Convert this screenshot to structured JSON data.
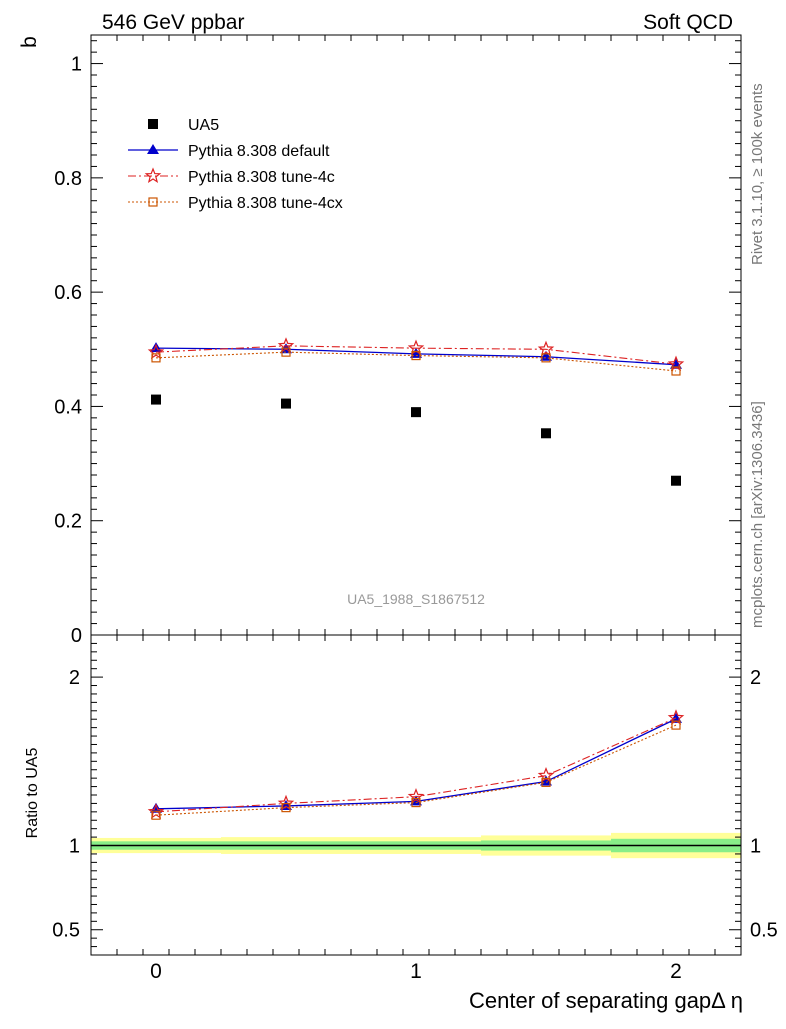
{
  "header": {
    "left": "546 GeV ppbar",
    "right": "Soft QCD"
  },
  "side_labels": {
    "rivet": "Rivet 3.1.10, ≥ 100k events",
    "mcplots": "mcplots.cern.ch [arXiv:1306.3436]"
  },
  "watermark": "UA5_1988_S1867512",
  "colors": {
    "ua5": "#000000",
    "default": "#0000cc",
    "tune4c": "#dd2222",
    "tune4cx": "#cc5500",
    "band_outer": "#ffff99",
    "band_inner": "#88ee88"
  },
  "chart_data": [
    {
      "type": "scatter",
      "ylabel": "b",
      "xlim": [
        -0.25,
        2.25
      ],
      "ylim": [
        0,
        1.05
      ],
      "yticks": [
        0,
        0.2,
        0.4,
        0.6,
        0.8,
        1
      ],
      "ytick_labels": [
        "0",
        "0.2",
        "0.4",
        "0.6",
        "0.8",
        "1"
      ],
      "x": [
        0,
        0.5,
        1,
        1.5,
        2
      ],
      "series": [
        {
          "name": "UA5",
          "style": "markers",
          "marker": "square",
          "values": [
            0.412,
            0.405,
            0.39,
            0.353,
            0.27
          ]
        },
        {
          "name": "Pythia 8.308 default",
          "style": "solid",
          "marker": "triangle",
          "values": [
            0.502,
            0.5,
            0.492,
            0.487,
            0.473
          ]
        },
        {
          "name": "Pythia 8.308 tune-4c",
          "style": "dashdot",
          "marker": "star",
          "values": [
            0.495,
            0.506,
            0.502,
            0.5,
            0.474
          ]
        },
        {
          "name": "Pythia 8.308 tune-4cx",
          "style": "dotted",
          "marker": "open-square",
          "values": [
            0.485,
            0.495,
            0.489,
            0.485,
            0.462
          ]
        }
      ],
      "legend": {
        "placement": "top-left"
      }
    },
    {
      "type": "line",
      "ylabel": "Ratio to UA5",
      "xlabel": "Center of separating gapΔ η",
      "xlim": [
        -0.25,
        2.25
      ],
      "ylim": [
        0.35,
        2.25
      ],
      "xticks": [
        0,
        1,
        2
      ],
      "xtick_labels": [
        "0",
        "1",
        "2"
      ],
      "yticks": [
        0.5,
        1,
        2
      ],
      "ytick_labels": [
        "0.5",
        "1",
        "2"
      ],
      "x": [
        0,
        0.5,
        1,
        1.5,
        2
      ],
      "series": [
        {
          "name": "Pythia 8.308 default",
          "values": [
            1.218,
            1.235,
            1.262,
            1.38,
            1.752
          ]
        },
        {
          "name": "Pythia 8.308 tune-4c",
          "values": [
            1.2,
            1.25,
            1.29,
            1.415,
            1.758
          ]
        },
        {
          "name": "Pythia 8.308 tune-4cx",
          "values": [
            1.18,
            1.225,
            1.255,
            1.375,
            1.715
          ]
        }
      ],
      "uncertainty_bands": [
        {
          "x_from": -0.25,
          "x_to": 0.25,
          "outer": 0.045,
          "inner": 0.025
        },
        {
          "x_from": 0.25,
          "x_to": 0.75,
          "outer": 0.05,
          "inner": 0.025
        },
        {
          "x_from": 0.75,
          "x_to": 1.25,
          "outer": 0.05,
          "inner": 0.025
        },
        {
          "x_from": 1.25,
          "x_to": 1.75,
          "outer": 0.06,
          "inner": 0.03
        },
        {
          "x_from": 1.75,
          "x_to": 2.25,
          "outer": 0.075,
          "inner": 0.04
        }
      ]
    }
  ]
}
